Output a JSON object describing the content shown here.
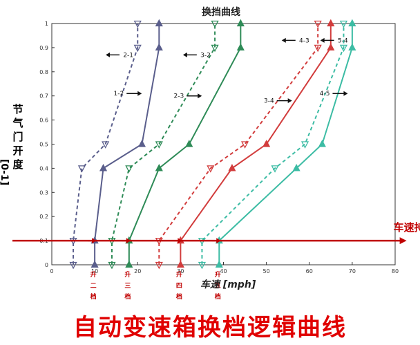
{
  "chart_data": {
    "type": "line",
    "title": "换挡曲线",
    "xlabel": "车速 [mph]",
    "ylabel_text": "节气门开度",
    "ylabel_range": "[0-1]",
    "xlim": [
      0,
      80
    ],
    "ylim": [
      0,
      1
    ],
    "x_ticks": [
      "0",
      "10",
      "20",
      "30",
      "40",
      "50",
      "60",
      "70",
      "80"
    ],
    "y_ticks": [
      "0",
      "0.1",
      "0.2",
      "0.3",
      "0.4",
      "0.5",
      "0.6",
      "0.7",
      "0.8",
      "0.9",
      "1"
    ],
    "grid": false,
    "series": [
      {
        "name": "1-2",
        "style": "solid",
        "marker": "up",
        "color": "#5a5e8c",
        "points": [
          [
            10,
            0
          ],
          [
            10,
            0.1
          ],
          [
            12,
            0.4
          ],
          [
            21,
            0.5
          ],
          [
            25,
            0.9
          ],
          [
            25,
            1
          ]
        ]
      },
      {
        "name": "2-1",
        "style": "dashed",
        "marker": "down",
        "color": "#5a5e8c",
        "points": [
          [
            5,
            0
          ],
          [
            5,
            0.1
          ],
          [
            7,
            0.4
          ],
          [
            12.5,
            0.5
          ],
          [
            20,
            0.9
          ],
          [
            20,
            1
          ]
        ]
      },
      {
        "name": "2-3",
        "style": "solid",
        "marker": "up",
        "color": "#2e8b57",
        "points": [
          [
            18,
            0
          ],
          [
            18,
            0.1
          ],
          [
            25,
            0.4
          ],
          [
            32,
            0.5
          ],
          [
            44,
            0.9
          ],
          [
            44,
            1
          ]
        ]
      },
      {
        "name": "3-2",
        "style": "dashed",
        "marker": "down",
        "color": "#2e8b57",
        "points": [
          [
            14,
            0
          ],
          [
            14,
            0.1
          ],
          [
            18,
            0.4
          ],
          [
            25,
            0.5
          ],
          [
            38,
            0.9
          ],
          [
            38,
            1
          ]
        ]
      },
      {
        "name": "3-4",
        "style": "solid",
        "marker": "up",
        "color": "#d23c3c",
        "points": [
          [
            30,
            0
          ],
          [
            30,
            0.1
          ],
          [
            42,
            0.4
          ],
          [
            50,
            0.5
          ],
          [
            65,
            0.9
          ],
          [
            65,
            1
          ]
        ]
      },
      {
        "name": "4-3",
        "style": "dashed",
        "marker": "down",
        "color": "#d23c3c",
        "points": [
          [
            25,
            0
          ],
          [
            25,
            0.1
          ],
          [
            37,
            0.4
          ],
          [
            45,
            0.5
          ],
          [
            62,
            0.9
          ],
          [
            62,
            1
          ]
        ]
      },
      {
        "name": "4-5",
        "style": "solid",
        "marker": "up",
        "color": "#3cbca4",
        "points": [
          [
            39,
            0
          ],
          [
            39,
            0.1
          ],
          [
            57,
            0.4
          ],
          [
            63,
            0.5
          ],
          [
            70,
            0.9
          ],
          [
            70,
            1
          ]
        ]
      },
      {
        "name": "5-4",
        "style": "dashed",
        "marker": "down",
        "color": "#3cbca4",
        "points": [
          [
            35,
            0
          ],
          [
            35,
            0.1
          ],
          [
            52,
            0.4
          ],
          [
            59,
            0.5
          ],
          [
            68,
            0.9
          ],
          [
            68,
            1
          ]
        ]
      }
    ],
    "annotations": [
      {
        "text": "2-1",
        "x": 19,
        "y": 0.87,
        "arrow": "left"
      },
      {
        "text": "1-2",
        "x": 20,
        "y": 0.71,
        "arrow": "right"
      },
      {
        "text": "3-2",
        "x": 37,
        "y": 0.87,
        "arrow": "left"
      },
      {
        "text": "2-3",
        "x": 34,
        "y": 0.7,
        "arrow": "right"
      },
      {
        "text": "4-3",
        "x": 60,
        "y": 0.93,
        "arrow": "left"
      },
      {
        "text": "5-4",
        "x": 69,
        "y": 0.93,
        "arrow": "left"
      },
      {
        "text": "3-4",
        "x": 55,
        "y": 0.68,
        "arrow": "right"
      },
      {
        "text": "4-5",
        "x": 68,
        "y": 0.71,
        "arrow": "right"
      }
    ],
    "speed_line": {
      "label": "车速持续上升",
      "y": 0.1,
      "x_end": 83,
      "color": "#c00000"
    },
    "upshift_labels": [
      {
        "text": "升二档",
        "x": 10
      },
      {
        "text": "升三档",
        "x": 18
      },
      {
        "text": "升四档",
        "x": 30
      },
      {
        "text": "升五档",
        "x": 39
      }
    ],
    "bottom_title": "自动变速箱换档逻辑曲线"
  }
}
